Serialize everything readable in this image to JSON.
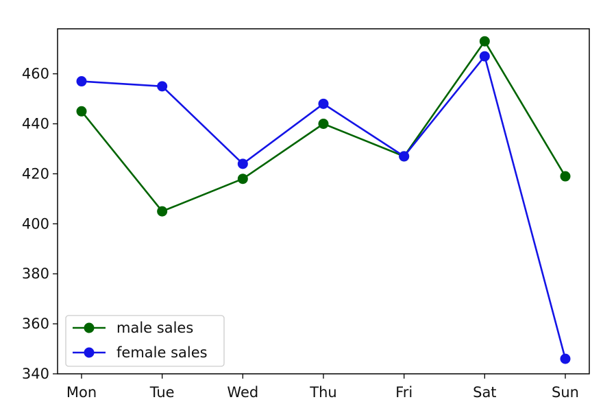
{
  "chart_data": {
    "type": "line",
    "title": "",
    "xlabel": "",
    "ylabel": "",
    "categories": [
      "Mon",
      "Tue",
      "Wed",
      "Thu",
      "Fri",
      "Sat",
      "Sun"
    ],
    "series": [
      {
        "name": "male sales",
        "color": "#006400",
        "marker": "circle",
        "values": [
          445,
          405,
          418,
          440,
          427,
          473,
          419
        ]
      },
      {
        "name": "female sales",
        "color": "#1414e6",
        "marker": "circle",
        "values": [
          457,
          455,
          424,
          448,
          427,
          467,
          346
        ]
      }
    ],
    "ylim": [
      340,
      478
    ],
    "yticks": [
      340,
      360,
      380,
      400,
      420,
      440,
      460
    ],
    "grid": false,
    "legend_position": "lower-left"
  }
}
